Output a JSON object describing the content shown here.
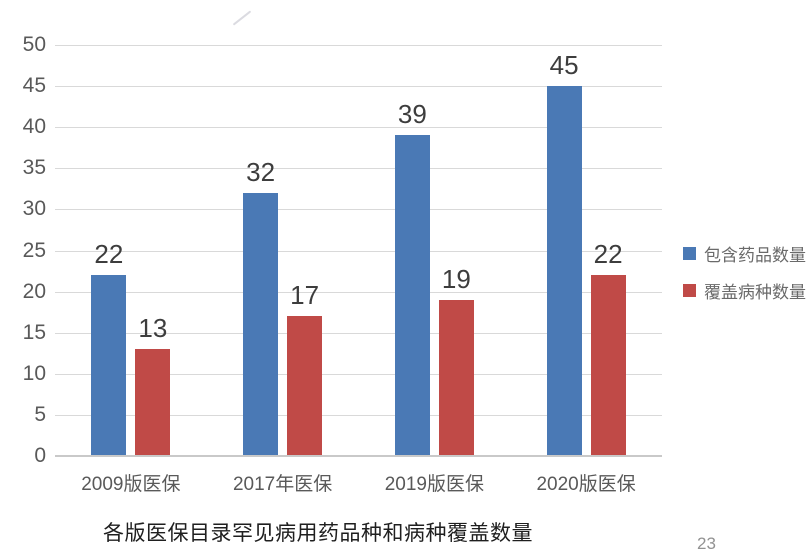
{
  "chart_data": {
    "type": "bar",
    "categories": [
      "2009版医保",
      "2017年医保",
      "2019版医保",
      "2020版医保"
    ],
    "series": [
      {
        "name": "包含药品数量",
        "color": "#4a79b5",
        "values": [
          22,
          32,
          39,
          45
        ]
      },
      {
        "name": "覆盖病种数量",
        "color": "#c04a47",
        "values": [
          13,
          17,
          19,
          22
        ]
      }
    ],
    "title": "各版医保目录罕见病用药品种和病种覆盖数量",
    "xlabel": "",
    "ylabel": "",
    "ylim": [
      0,
      50
    ],
    "ytick_step": 5,
    "grid": true,
    "legend_position": "right"
  },
  "page": {
    "page_number": "23"
  },
  "colors": {
    "gridline": "#d9d9d9",
    "axis_line": "#c9c9c9",
    "tick_label": "#595959",
    "value_label": "#3d3d3d",
    "title": "#1f1f1f",
    "page_number": "#929292"
  }
}
